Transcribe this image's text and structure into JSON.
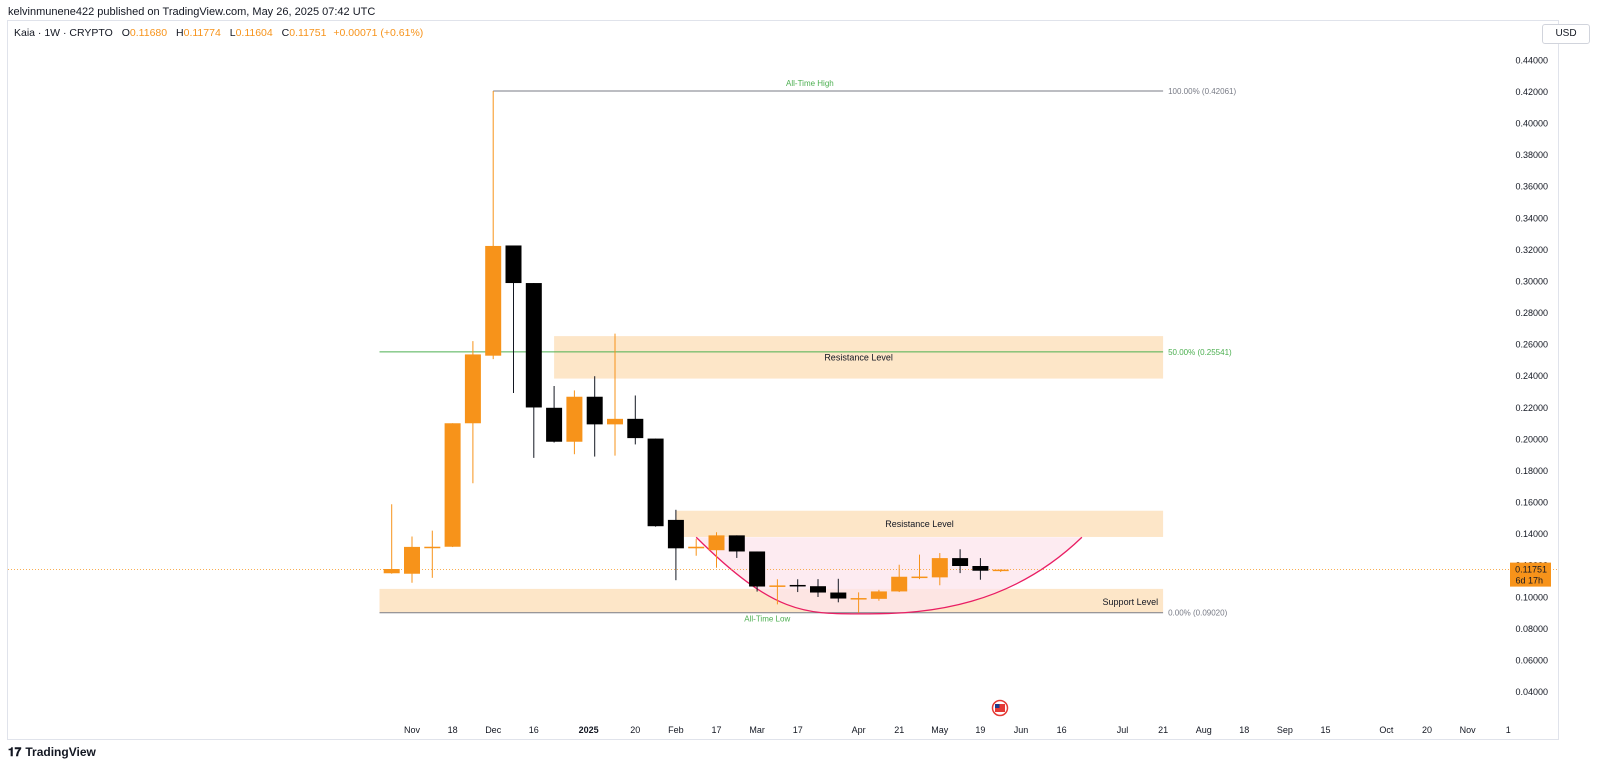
{
  "published_line": "kelvinmunene422 published on TradingView.com, May 26, 2025 07:42 UTC",
  "legend": {
    "symbol": "Kaia · 1W · CRYPTO",
    "open_label": "O",
    "open": "0.11680",
    "high_label": "H",
    "high": "0.11774",
    "low_label": "L",
    "low": "0.11604",
    "close_label": "C",
    "close": "0.11751",
    "change": "+0.00071 (+0.61%)"
  },
  "currency": "USD",
  "footer": {
    "brand": "TradingView"
  },
  "colors": {
    "up": "#f7931a",
    "down": "#000000",
    "zone": "#fde6c8",
    "fib": "#4caf50",
    "arc": "#e91e63",
    "arc_fill": "#fce4ec"
  },
  "chart_data": {
    "type": "candlestick",
    "y_range": [
      0.03,
      0.45
    ],
    "y_ticks": [
      "0.44000",
      "0.42000",
      "0.40000",
      "0.38000",
      "0.36000",
      "0.34000",
      "0.32000",
      "0.30000",
      "0.28000",
      "0.26000",
      "0.24000",
      "0.22000",
      "0.20000",
      "0.18000",
      "0.16000",
      "0.14000",
      "0.12000",
      "0.10000",
      "0.08000",
      "0.06000",
      "0.04000"
    ],
    "x_labels": [
      {
        "label": "Nov",
        "w": 0
      },
      {
        "label": "18",
        "w": 2
      },
      {
        "label": "Dec",
        "w": 4
      },
      {
        "label": "16",
        "w": 6
      },
      {
        "label": "2025",
        "w": 8.7,
        "bold": true
      },
      {
        "label": "20",
        "w": 11
      },
      {
        "label": "Feb",
        "w": 13
      },
      {
        "label": "17",
        "w": 15
      },
      {
        "label": "Mar",
        "w": 17
      },
      {
        "label": "17",
        "w": 19
      },
      {
        "label": "Apr",
        "w": 22
      },
      {
        "label": "21",
        "w": 24
      },
      {
        "label": "May",
        "w": 26
      },
      {
        "label": "19",
        "w": 28
      },
      {
        "label": "Jun",
        "w": 30
      },
      {
        "label": "16",
        "w": 32
      },
      {
        "label": "Jul",
        "w": 35
      },
      {
        "label": "21",
        "w": 37
      },
      {
        "label": "Aug",
        "w": 39
      },
      {
        "label": "18",
        "w": 41
      },
      {
        "label": "Sep",
        "w": 43
      },
      {
        "label": "15",
        "w": 45
      },
      {
        "label": "Oct",
        "w": 48
      },
      {
        "label": "20",
        "w": 50
      },
      {
        "label": "Nov",
        "w": 52
      },
      {
        "label": "1",
        "w": 54
      }
    ],
    "candles": [
      {
        "w": -1,
        "o": 0.1152,
        "h": 0.1589,
        "l": 0.1149,
        "c": 0.1179
      },
      {
        "w": 0,
        "o": 0.1149,
        "h": 0.1385,
        "l": 0.1092,
        "c": 0.1319
      },
      {
        "w": 1,
        "o": 0.1318,
        "h": 0.1422,
        "l": 0.1123,
        "c": 0.132
      },
      {
        "w": 2,
        "o": 0.132,
        "h": 0.2102,
        "l": 0.1318,
        "c": 0.2102
      },
      {
        "w": 3,
        "o": 0.2102,
        "h": 0.2622,
        "l": 0.1722,
        "c": 0.2538
      },
      {
        "w": 4,
        "o": 0.253,
        "h": 0.4206,
        "l": 0.2508,
        "c": 0.3225
      },
      {
        "w": 5,
        "o": 0.3228,
        "h": 0.3228,
        "l": 0.2294,
        "c": 0.299
      },
      {
        "w": 6,
        "o": 0.299,
        "h": 0.299,
        "l": 0.1883,
        "c": 0.2202
      },
      {
        "w": 7,
        "o": 0.22,
        "h": 0.2338,
        "l": 0.198,
        "c": 0.1985
      },
      {
        "w": 8,
        "o": 0.1985,
        "h": 0.231,
        "l": 0.1906,
        "c": 0.227
      },
      {
        "w": 9,
        "o": 0.227,
        "h": 0.24,
        "l": 0.1891,
        "c": 0.2095
      },
      {
        "w": 10,
        "o": 0.2095,
        "h": 0.267,
        "l": 0.1897,
        "c": 0.213
      },
      {
        "w": 11,
        "o": 0.213,
        "h": 0.2278,
        "l": 0.1968,
        "c": 0.2008
      },
      {
        "w": 12,
        "o": 0.2005,
        "h": 0.2005,
        "l": 0.1447,
        "c": 0.145
      },
      {
        "w": 13,
        "o": 0.149,
        "h": 0.1554,
        "l": 0.1108,
        "c": 0.131
      },
      {
        "w": 14,
        "o": 0.131,
        "h": 0.137,
        "l": 0.1263,
        "c": 0.132
      },
      {
        "w": 15,
        "o": 0.1298,
        "h": 0.1412,
        "l": 0.1187,
        "c": 0.1392
      },
      {
        "w": 16,
        "o": 0.1392,
        "h": 0.1392,
        "l": 0.1249,
        "c": 0.129
      },
      {
        "w": 17,
        "o": 0.129,
        "h": 0.129,
        "l": 0.1036,
        "c": 0.1068
      },
      {
        "w": 18,
        "o": 0.1068,
        "h": 0.1114,
        "l": 0.0955,
        "c": 0.1075
      },
      {
        "w": 19,
        "o": 0.1078,
        "h": 0.1114,
        "l": 0.1033,
        "c": 0.107
      },
      {
        "w": 20,
        "o": 0.107,
        "h": 0.1115,
        "l": 0.1002,
        "c": 0.103
      },
      {
        "w": 21,
        "o": 0.103,
        "h": 0.1117,
        "l": 0.0968,
        "c": 0.0992
      },
      {
        "w": 22,
        "o": 0.0992,
        "h": 0.1031,
        "l": 0.0902,
        "c": 0.0995
      },
      {
        "w": 23,
        "o": 0.099,
        "h": 0.1047,
        "l": 0.0978,
        "c": 0.1037
      },
      {
        "w": 24,
        "o": 0.1037,
        "h": 0.1206,
        "l": 0.1033,
        "c": 0.113
      },
      {
        "w": 25,
        "o": 0.1124,
        "h": 0.127,
        "l": 0.1115,
        "c": 0.1131
      },
      {
        "w": 26,
        "o": 0.1126,
        "h": 0.128,
        "l": 0.1076,
        "c": 0.1248
      },
      {
        "w": 27,
        "o": 0.1248,
        "h": 0.1304,
        "l": 0.1153,
        "c": 0.1198
      },
      {
        "w": 28,
        "o": 0.1198,
        "h": 0.1248,
        "l": 0.1111,
        "c": 0.1168
      },
      {
        "w": 29,
        "o": 0.1168,
        "h": 0.1177,
        "l": 0.116,
        "c": 0.1175
      }
    ],
    "zones": [
      {
        "label": "Resistance Level",
        "top": 0.2654,
        "bottom": 0.2385,
        "w1": 7,
        "w2": 37
      },
      {
        "label": "Resistance Level",
        "top": 0.1548,
        "bottom": 0.1382,
        "w1": 13,
        "w2": 37
      },
      {
        "label": "Support Level",
        "top": 0.1053,
        "bottom": 0.0904,
        "w1": -1.6,
        "w2": 37
      }
    ],
    "fib_levels": [
      {
        "label": "100.00% (0.42061)",
        "value": 0.42061,
        "name": "All-Time High"
      },
      {
        "label": "50.00% (0.25541)",
        "value": 0.25541,
        "name": ""
      },
      {
        "label": "0.00% (0.09020)",
        "value": 0.0902,
        "name": "All-Time Low"
      }
    ],
    "current_price": {
      "value": 0.11751,
      "label": "0.11751",
      "countdown": "6d 17h"
    },
    "pattern": {
      "type": "rounded-bottom arc",
      "start": {
        "w": 14,
        "v": 0.138
      },
      "bottom": {
        "w": 22.5,
        "v": 0.0895
      },
      "end": {
        "w": 33,
        "v": 0.138
      }
    }
  }
}
